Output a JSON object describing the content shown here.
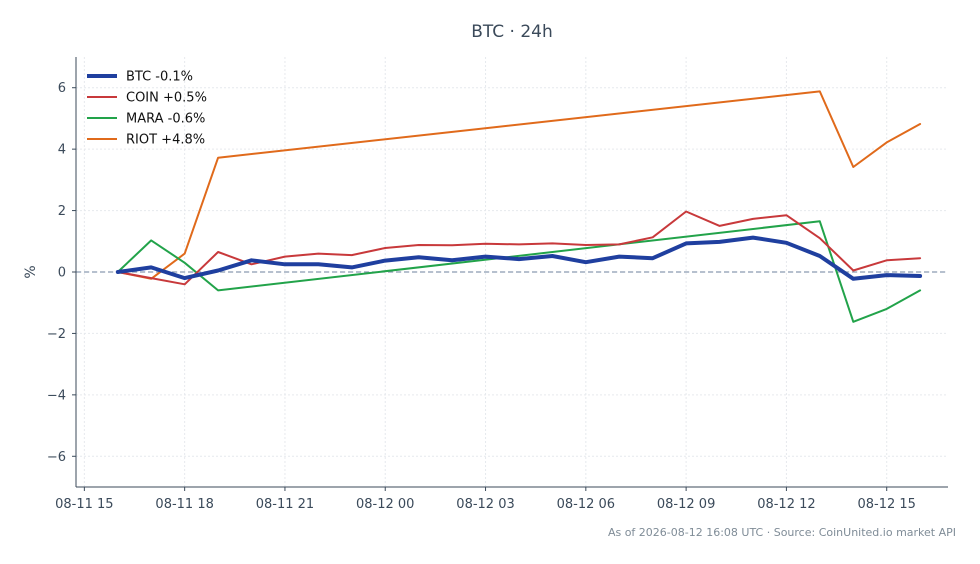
{
  "chart_data": {
    "type": "line",
    "title": "BTC · 24h",
    "xlabel": "",
    "ylabel": "%",
    "ylim": [
      -7,
      7
    ],
    "yticks": [
      -6,
      -4,
      -2,
      0,
      2,
      4,
      6
    ],
    "ytick_labels": [
      "−6",
      "−4",
      "−2",
      "0",
      "2",
      "4",
      "6"
    ],
    "xlim": [
      "2026-08-11 14:45",
      "2026-08-12 16:50"
    ],
    "xticks": [
      "2026-08-11 15:00",
      "2026-08-11 18:00",
      "2026-08-11 21:00",
      "2026-08-12 00:00",
      "2026-08-12 03:00",
      "2026-08-12 06:00",
      "2026-08-12 09:00",
      "2026-08-12 12:00",
      "2026-08-12 15:00"
    ],
    "xtick_labels": [
      "08-11 15",
      "08-11 18",
      "08-11 21",
      "08-12 00",
      "08-12 03",
      "08-12 06",
      "08-12 09",
      "08-12 12",
      "08-12 15"
    ],
    "grid": true,
    "baseline": 0,
    "legend_position": "top-left",
    "series": [
      {
        "name": "BTC -0.1%",
        "color": "#1f3f9f",
        "width": 4,
        "points": [
          [
            "2026-08-11 16:00",
            0.0
          ],
          [
            "2026-08-11 17:00",
            0.15
          ],
          [
            "2026-08-11 18:00",
            -0.2
          ],
          [
            "2026-08-11 19:00",
            0.05
          ],
          [
            "2026-08-11 20:00",
            0.38
          ],
          [
            "2026-08-11 21:00",
            0.25
          ],
          [
            "2026-08-11 22:00",
            0.25
          ],
          [
            "2026-08-11 23:00",
            0.15
          ],
          [
            "2026-08-12 00:00",
            0.37
          ],
          [
            "2026-08-12 01:00",
            0.48
          ],
          [
            "2026-08-12 02:00",
            0.38
          ],
          [
            "2026-08-12 03:00",
            0.5
          ],
          [
            "2026-08-12 04:00",
            0.42
          ],
          [
            "2026-08-12 05:00",
            0.52
          ],
          [
            "2026-08-12 06:00",
            0.32
          ],
          [
            "2026-08-12 07:00",
            0.5
          ],
          [
            "2026-08-12 08:00",
            0.45
          ],
          [
            "2026-08-12 09:00",
            0.93
          ],
          [
            "2026-08-12 10:00",
            0.98
          ],
          [
            "2026-08-12 11:00",
            1.12
          ],
          [
            "2026-08-12 12:00",
            0.95
          ],
          [
            "2026-08-12 13:00",
            0.52
          ],
          [
            "2026-08-12 14:00",
            -0.22
          ],
          [
            "2026-08-12 15:00",
            -0.1
          ],
          [
            "2026-08-12 16:00",
            -0.13
          ]
        ]
      },
      {
        "name": "COIN +0.5%",
        "color": "#c8393b",
        "width": 2,
        "points": [
          [
            "2026-08-11 16:00",
            0.0
          ],
          [
            "2026-08-11 17:00",
            -0.2
          ],
          [
            "2026-08-11 18:00",
            -0.4
          ],
          [
            "2026-08-11 19:00",
            0.65
          ],
          [
            "2026-08-11 20:00",
            0.25
          ],
          [
            "2026-08-11 21:00",
            0.5
          ],
          [
            "2026-08-11 22:00",
            0.6
          ],
          [
            "2026-08-11 23:00",
            0.55
          ],
          [
            "2026-08-12 00:00",
            0.78
          ],
          [
            "2026-08-12 01:00",
            0.88
          ],
          [
            "2026-08-12 02:00",
            0.87
          ],
          [
            "2026-08-12 03:00",
            0.92
          ],
          [
            "2026-08-12 04:00",
            0.9
          ],
          [
            "2026-08-12 05:00",
            0.93
          ],
          [
            "2026-08-12 06:00",
            0.88
          ],
          [
            "2026-08-12 07:00",
            0.9
          ],
          [
            "2026-08-12 08:00",
            1.13
          ],
          [
            "2026-08-12 09:00",
            1.97
          ],
          [
            "2026-08-12 10:00",
            1.5
          ],
          [
            "2026-08-12 11:00",
            1.73
          ],
          [
            "2026-08-12 12:00",
            1.85
          ],
          [
            "2026-08-12 13:00",
            1.1
          ],
          [
            "2026-08-12 14:00",
            0.05
          ],
          [
            "2026-08-12 15:00",
            0.38
          ],
          [
            "2026-08-12 16:00",
            0.45
          ]
        ]
      },
      {
        "name": "MARA -0.6%",
        "color": "#22a34a",
        "width": 2,
        "points": [
          [
            "2026-08-11 16:00",
            0.0
          ],
          [
            "2026-08-11 17:00",
            1.03
          ],
          [
            "2026-08-11 18:00",
            0.3
          ],
          [
            "2026-08-11 19:00",
            -0.6
          ],
          [
            "2026-08-12 13:00",
            1.65
          ],
          [
            "2026-08-12 14:00",
            -1.62
          ],
          [
            "2026-08-12 15:00",
            -1.2
          ],
          [
            "2026-08-12 16:00",
            -0.6
          ]
        ]
      },
      {
        "name": "RIOT +4.8%",
        "color": "#e06a1b",
        "width": 2,
        "points": [
          [
            "2026-08-11 16:00",
            0.0
          ],
          [
            "2026-08-11 17:00",
            -0.22
          ],
          [
            "2026-08-11 18:00",
            0.6
          ],
          [
            "2026-08-11 19:00",
            3.72
          ],
          [
            "2026-08-12 13:00",
            5.88
          ],
          [
            "2026-08-12 14:00",
            3.42
          ],
          [
            "2026-08-12 15:00",
            4.22
          ],
          [
            "2026-08-12 16:00",
            4.82
          ]
        ]
      }
    ]
  },
  "footer": {
    "text": "As of 2026-08-12 16:08 UTC · Source: CoinUnited.io market API"
  }
}
